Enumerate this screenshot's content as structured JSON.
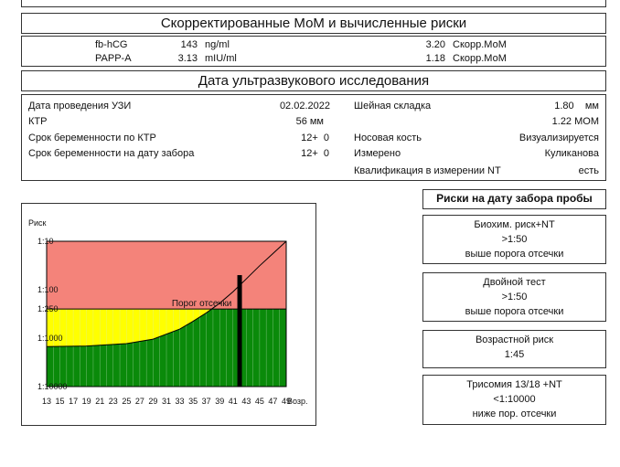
{
  "mom_header": {
    "title": "Скорректированные МоМ и вычисленные риски"
  },
  "markers": [
    {
      "name": "fb-hCG",
      "value": "143",
      "unit": "ng/ml",
      "mom": "3.20",
      "mom_label": "Скорр.МоМ"
    },
    {
      "name": "PAPP-A",
      "value": "3.13",
      "unit": "mIU/ml",
      "mom": "1.18",
      "mom_label": "Скорр.МоМ"
    }
  ],
  "us_header": {
    "title": "Дата ультразвукового исследования"
  },
  "us_left": [
    {
      "label": "Дата проведения УЗИ",
      "value": "02.02.2022"
    },
    {
      "label": "КТР",
      "value": "56 мм"
    },
    {
      "label": "Срок беременности по КТР",
      "value": "12+  0"
    },
    {
      "label": "Срок беременности на дату забора",
      "value": "12+  0"
    }
  ],
  "us_right": [
    {
      "label": "Шейная складка",
      "value": "1.80    мм"
    },
    {
      "label": "",
      "value": "1.22 МОМ"
    },
    {
      "label": "Носовая кость",
      "value": "Визуализируется"
    },
    {
      "label": "Измерено",
      "value": "Куликанова"
    },
    {
      "label": "Квалификация в измерении NT",
      "value": "есть"
    }
  ],
  "chart_data": {
    "type": "area",
    "ylabel": "Риск",
    "xlabel": "Возр.",
    "y_scale": "log",
    "y_ticks": [
      "1:10",
      "1:100",
      "1:250",
      "1:1000",
      "1:10000"
    ],
    "y_tick_values": [
      10,
      100,
      250,
      1000,
      10000
    ],
    "x_ticks": [
      "13",
      "15",
      "17",
      "19",
      "21",
      "23",
      "25",
      "27",
      "29",
      "31",
      "33",
      "35",
      "37",
      "39",
      "41",
      "43",
      "45",
      "47",
      "49"
    ],
    "xlim": [
      13,
      49
    ],
    "ylim": [
      10,
      10000
    ],
    "cutoff": {
      "label": "Порог отсечки",
      "value": 250
    },
    "age_curve": {
      "x": [
        13,
        19,
        25,
        29,
        33,
        35,
        37,
        39,
        41,
        43,
        45,
        47,
        49
      ],
      "y": [
        1500,
        1450,
        1300,
        1050,
        650,
        450,
        300,
        190,
        110,
        60,
        32,
        18,
        10
      ]
    },
    "patient_risk_bar": {
      "x": 42,
      "value": 50
    },
    "colors": {
      "high_risk": "#f4837a",
      "low_risk": "#0a8a0a",
      "age_fill": "#ffff00",
      "bar": "#000000"
    }
  },
  "risks_header": {
    "title": "Риски на дату забора пробы"
  },
  "risks": [
    {
      "lines": [
        "Биохим. риск+NT",
        ">1:50",
        "выше порога отсечки"
      ]
    },
    {
      "lines": [
        "Двойной тест",
        ">1:50",
        "выше порога отсечки"
      ]
    },
    {
      "lines": [
        "Возрастной риск",
        "1:45"
      ]
    },
    {
      "lines": [
        "Трисомия 13/18 +NT",
        "<1:10000",
        "ниже пор. отсечки"
      ]
    }
  ]
}
